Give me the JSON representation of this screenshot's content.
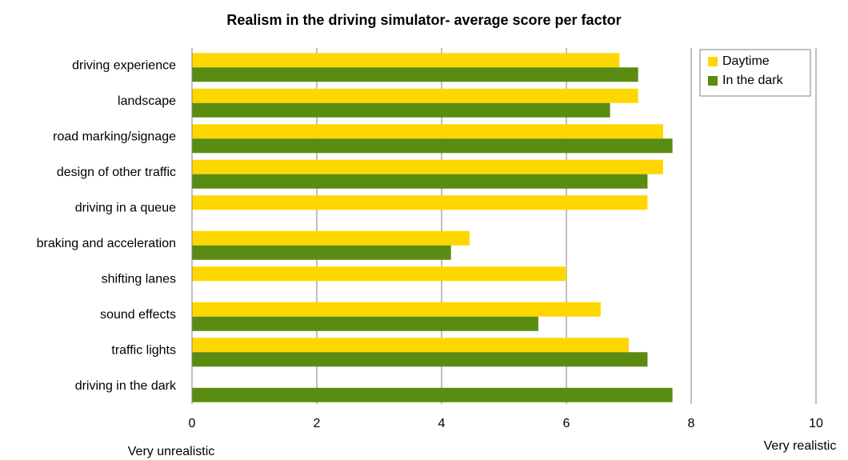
{
  "chart_data": {
    "type": "hbar",
    "title": "Realism in the driving simulator- average score per factor",
    "categories": [
      "driving experience",
      "landscape",
      "road marking/signage",
      "design of other traffic",
      "driving in a queue",
      "braking and acceleration",
      "shifting lanes",
      "sound effects",
      "traffic lights",
      "driving in the dark"
    ],
    "series": [
      {
        "name": "Daytime",
        "color": "#ffd700",
        "values": [
          6.85,
          7.15,
          7.55,
          7.55,
          7.3,
          4.45,
          6.0,
          6.55,
          7.0,
          null
        ]
      },
      {
        "name": "In the dark",
        "color": "#5b8c12",
        "values": [
          7.15,
          6.7,
          7.7,
          7.3,
          null,
          4.15,
          null,
          5.55,
          7.3,
          7.7
        ]
      }
    ],
    "xlim": [
      0,
      10
    ],
    "xticks": [
      0,
      2,
      4,
      6,
      8,
      10
    ],
    "grid": true,
    "legend": "top-right",
    "annotations": [
      "Very unrealistic",
      "Very realistic"
    ]
  }
}
